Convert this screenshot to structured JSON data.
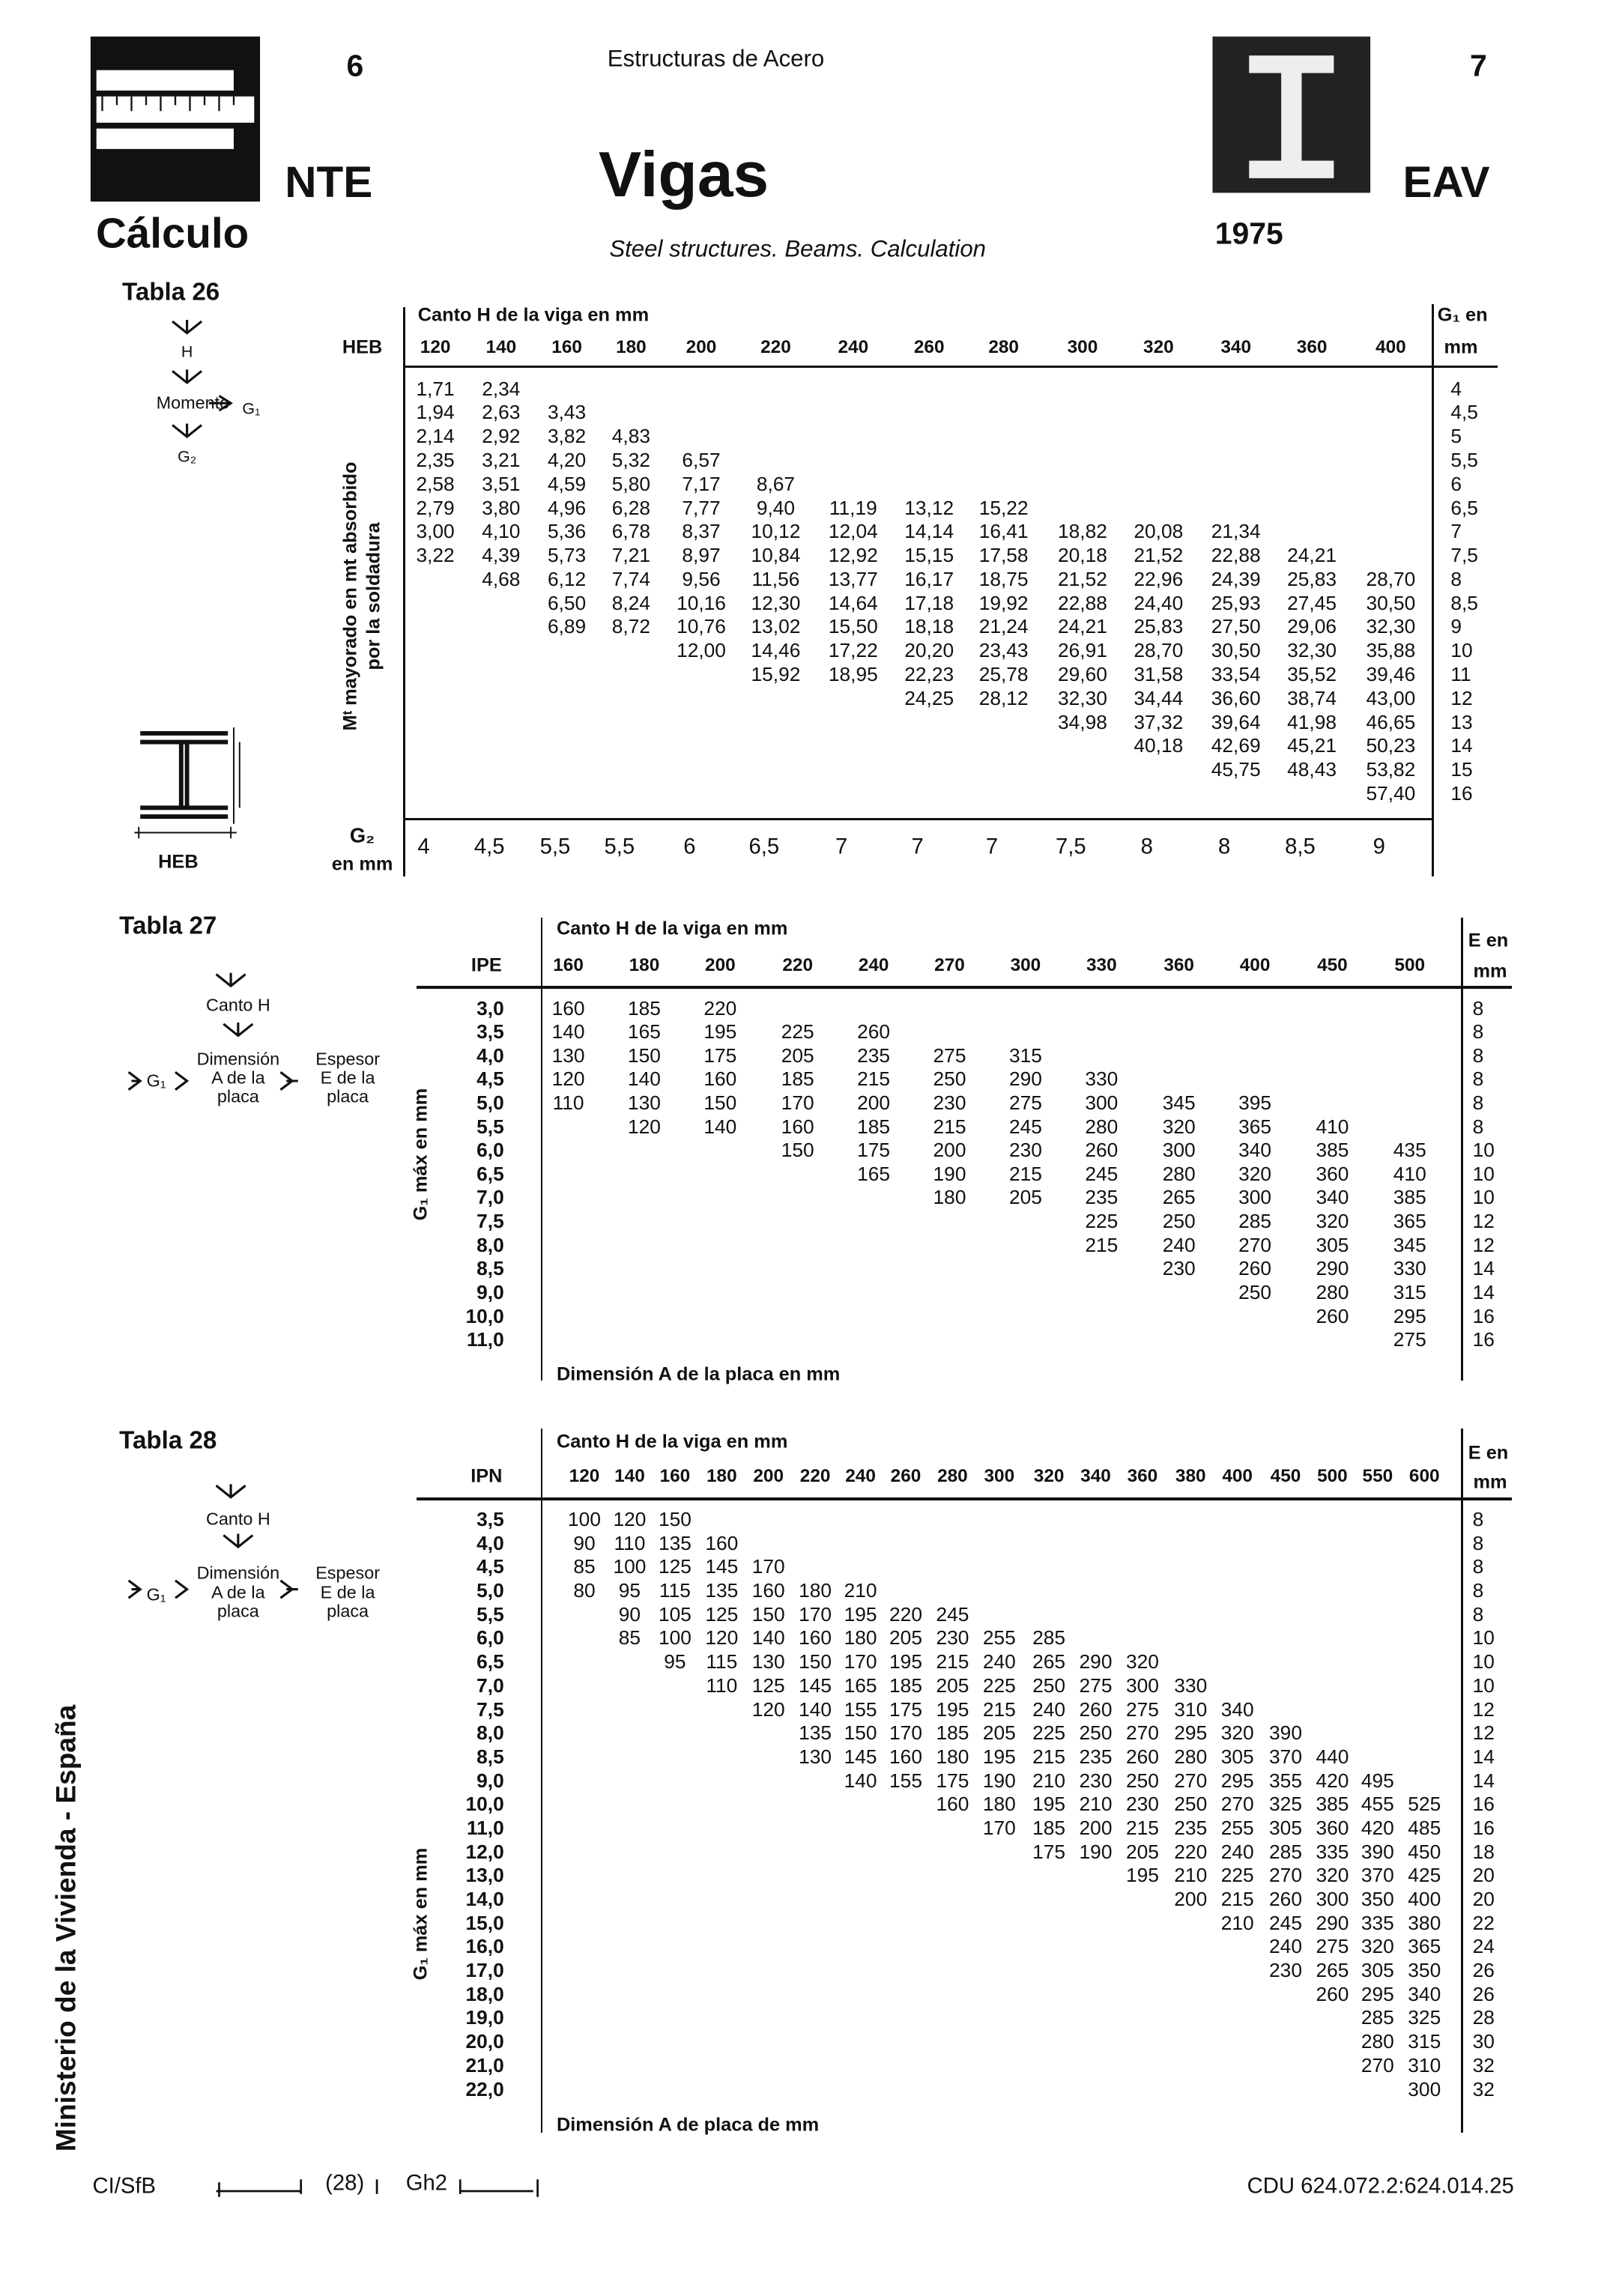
{
  "header": {
    "page_left": "6",
    "series": "Estructuras de Acero",
    "page_right": "7",
    "nte": "NTE",
    "title": "Vigas",
    "code": "EAV",
    "section": "Cálculo",
    "subtitle": "Steel structures. Beams. Calculation",
    "year": "1975"
  },
  "side_text": "Ministerio de la Vivienda - España",
  "tabla26": {
    "title": "Tabla 26",
    "flow": {
      "h": "H",
      "momento": "Momento",
      "g1": "G₁",
      "g2": "G₂"
    },
    "profile_label": "HEB",
    "column_label": "HEB",
    "column_header": "Canto H de la viga en mm",
    "g1_header": "G₁ en",
    "g1_unit": "mm",
    "row_header": [
      "Mᵗ mayorado en mt absorbido",
      "por la soldadura"
    ],
    "columns": [
      120,
      140,
      160,
      180,
      200,
      220,
      240,
      260,
      280,
      300,
      320,
      340,
      360,
      400
    ],
    "rows": [
      {
        "g1": "4",
        "values": [
          "1,71",
          "2,34"
        ]
      },
      {
        "g1": "4,5",
        "values": [
          "1,94",
          "2,63",
          "3,43"
        ]
      },
      {
        "g1": "5",
        "values": [
          "2,14",
          "2,92",
          "3,82",
          "4,83"
        ]
      },
      {
        "g1": "5,5",
        "values": [
          "2,35",
          "3,21",
          "4,20",
          "5,32",
          "6,57"
        ]
      },
      {
        "g1": "6",
        "values": [
          "2,58",
          "3,51",
          "4,59",
          "5,80",
          "7,17",
          "8,67"
        ]
      },
      {
        "g1": "6,5",
        "values": [
          "2,79",
          "3,80",
          "4,96",
          "6,28",
          "7,77",
          "9,40",
          "11,19",
          "13,12",
          "15,22"
        ]
      },
      {
        "g1": "7",
        "values": [
          "3,00",
          "4,10",
          "5,36",
          "6,78",
          "8,37",
          "10,12",
          "12,04",
          "14,14",
          "16,41",
          "18,82",
          "20,08",
          "21,34"
        ]
      },
      {
        "g1": "7,5",
        "values": [
          "3,22",
          "4,39",
          "5,73",
          "7,21",
          "8,97",
          "10,84",
          "12,92",
          "15,15",
          "17,58",
          "20,18",
          "21,52",
          "22,88",
          "24,21"
        ]
      },
      {
        "g1": "8",
        "values": [
          null,
          "4,68",
          "6,12",
          "7,74",
          "9,56",
          "11,56",
          "13,77",
          "16,17",
          "18,75",
          "21,52",
          "22,96",
          "24,39",
          "25,83",
          "28,70"
        ]
      },
      {
        "g1": "8,5",
        "values": [
          null,
          null,
          "6,50",
          "8,24",
          "10,16",
          "12,30",
          "14,64",
          "17,18",
          "19,92",
          "22,88",
          "24,40",
          "25,93",
          "27,45",
          "30,50"
        ]
      },
      {
        "g1": "9",
        "values": [
          null,
          null,
          "6,89",
          "8,72",
          "10,76",
          "13,02",
          "15,50",
          "18,18",
          "21,24",
          "24,21",
          "25,83",
          "27,50",
          "29,06",
          "32,30"
        ]
      },
      {
        "g1": "10",
        "values": [
          null,
          null,
          null,
          null,
          "12,00",
          "14,46",
          "17,22",
          "20,20",
          "23,43",
          "26,91",
          "28,70",
          "30,50",
          "32,30",
          "35,88"
        ]
      },
      {
        "g1": "11",
        "values": [
          null,
          null,
          null,
          null,
          null,
          "15,92",
          "18,95",
          "22,23",
          "25,78",
          "29,60",
          "31,58",
          "33,54",
          "35,52",
          "39,46"
        ]
      },
      {
        "g1": "12",
        "values": [
          null,
          null,
          null,
          null,
          null,
          null,
          null,
          "24,25",
          "28,12",
          "32,30",
          "34,44",
          "36,60",
          "38,74",
          "43,00"
        ]
      },
      {
        "g1": "13",
        "values": [
          null,
          null,
          null,
          null,
          null,
          null,
          null,
          null,
          null,
          "34,98",
          "37,32",
          "39,64",
          "41,98",
          "46,65"
        ]
      },
      {
        "g1": "14",
        "values": [
          null,
          null,
          null,
          null,
          null,
          null,
          null,
          null,
          null,
          null,
          "40,18",
          "42,69",
          "45,21",
          "50,23"
        ]
      },
      {
        "g1": "15",
        "values": [
          null,
          null,
          null,
          null,
          null,
          null,
          null,
          null,
          null,
          null,
          null,
          "45,75",
          "48,43",
          "53,82"
        ]
      },
      {
        "g1": "16",
        "values": [
          null,
          null,
          null,
          null,
          null,
          null,
          null,
          null,
          null,
          null,
          null,
          null,
          null,
          "57,40"
        ]
      }
    ],
    "g2_label": [
      "G₂",
      "en mm"
    ],
    "g2": [
      "4",
      "4,5",
      "5,5",
      "5,5",
      "6",
      "6,5",
      "7",
      "7",
      "7",
      "7,5",
      "8",
      "8",
      "8,5",
      "9"
    ]
  },
  "tabla27": {
    "title": "Tabla 27",
    "flow": {
      "canto": "Canto H",
      "g1": "G₁",
      "dimension": [
        "Dimensión",
        "A de la",
        "placa"
      ],
      "espesor": [
        "Espesor",
        "E de la",
        "placa"
      ]
    },
    "column_label": "IPE",
    "column_header": "Canto H de la viga en mm",
    "e_header": [
      "E en",
      "mm"
    ],
    "row_header": "G₁ máx en mm",
    "footer": "Dimensión A de la placa en mm",
    "columns": [
      160,
      180,
      200,
      220,
      240,
      270,
      300,
      330,
      360,
      400,
      450,
      500
    ],
    "rows": [
      {
        "g1": "3,0",
        "values": [
          160,
          185,
          220
        ],
        "e": 8
      },
      {
        "g1": "3,5",
        "values": [
          140,
          165,
          195,
          225,
          260
        ],
        "e": 8
      },
      {
        "g1": "4,0",
        "values": [
          130,
          150,
          175,
          205,
          235,
          275,
          315
        ],
        "e": 8
      },
      {
        "g1": "4,5",
        "values": [
          120,
          140,
          160,
          185,
          215,
          250,
          290,
          330
        ],
        "e": 8
      },
      {
        "g1": "5,0",
        "values": [
          110,
          130,
          150,
          170,
          200,
          230,
          275,
          300,
          345,
          395
        ],
        "e": 8
      },
      {
        "g1": "5,5",
        "values": [
          null,
          120,
          140,
          160,
          185,
          215,
          245,
          280,
          320,
          365,
          410
        ],
        "e": 8
      },
      {
        "g1": "6,0",
        "values": [
          null,
          null,
          null,
          150,
          175,
          200,
          230,
          260,
          300,
          340,
          385,
          435
        ],
        "e": 10
      },
      {
        "g1": "6,5",
        "values": [
          null,
          null,
          null,
          null,
          165,
          190,
          215,
          245,
          280,
          320,
          360,
          410
        ],
        "e": 10
      },
      {
        "g1": "7,0",
        "values": [
          null,
          null,
          null,
          null,
          null,
          180,
          205,
          235,
          265,
          300,
          340,
          385
        ],
        "e": 10
      },
      {
        "g1": "7,5",
        "values": [
          null,
          null,
          null,
          null,
          null,
          null,
          null,
          225,
          250,
          285,
          320,
          365
        ],
        "e": 12
      },
      {
        "g1": "8,0",
        "values": [
          null,
          null,
          null,
          null,
          null,
          null,
          null,
          215,
          240,
          270,
          305,
          345
        ],
        "e": 12
      },
      {
        "g1": "8,5",
        "values": [
          null,
          null,
          null,
          null,
          null,
          null,
          null,
          null,
          230,
          260,
          290,
          330
        ],
        "e": 14
      },
      {
        "g1": "9,0",
        "values": [
          null,
          null,
          null,
          null,
          null,
          null,
          null,
          null,
          null,
          250,
          280,
          315
        ],
        "e": 14
      },
      {
        "g1": "10,0",
        "values": [
          null,
          null,
          null,
          null,
          null,
          null,
          null,
          null,
          null,
          null,
          260,
          295
        ],
        "e": 16
      },
      {
        "g1": "11,0",
        "values": [
          null,
          null,
          null,
          null,
          null,
          null,
          null,
          null,
          null,
          null,
          null,
          275
        ],
        "e": 16
      }
    ]
  },
  "tabla28": {
    "title": "Tabla 28",
    "flow": {
      "canto": "Canto H",
      "g1": "G₁",
      "dimension": [
        "Dimensión",
        "A de la",
        "placa"
      ],
      "espesor": [
        "Espesor",
        "E de la",
        "placa"
      ]
    },
    "column_label": "IPN",
    "column_header": "Canto H de la viga en mm",
    "e_header": [
      "E en",
      "mm"
    ],
    "row_header": "G₁ máx en mm",
    "footer": "Dimensión A de placa de mm",
    "columns": [
      120,
      140,
      160,
      180,
      200,
      220,
      240,
      260,
      280,
      300,
      320,
      340,
      360,
      380,
      400,
      450,
      500,
      550,
      600
    ],
    "rows": [
      {
        "g1": "3,5",
        "values": [
          100,
          120,
          150
        ],
        "e": 8
      },
      {
        "g1": "4,0",
        "values": [
          90,
          110,
          135,
          160
        ],
        "e": 8
      },
      {
        "g1": "4,5",
        "values": [
          85,
          100,
          125,
          145,
          170
        ],
        "e": 8
      },
      {
        "g1": "5,0",
        "values": [
          80,
          95,
          115,
          135,
          160,
          180,
          210
        ],
        "e": 8
      },
      {
        "g1": "5,5",
        "values": [
          null,
          90,
          105,
          125,
          150,
          170,
          195,
          220,
          245
        ],
        "e": 8
      },
      {
        "g1": "6,0",
        "values": [
          null,
          85,
          100,
          120,
          140,
          160,
          180,
          205,
          230,
          255,
          285
        ],
        "e": 10
      },
      {
        "g1": "6,5",
        "values": [
          null,
          null,
          95,
          115,
          130,
          150,
          170,
          195,
          215,
          240,
          265,
          290,
          320
        ],
        "e": 10
      },
      {
        "g1": "7,0",
        "values": [
          null,
          null,
          null,
          110,
          125,
          145,
          165,
          185,
          205,
          225,
          250,
          275,
          300,
          330
        ],
        "e": 10
      },
      {
        "g1": "7,5",
        "values": [
          null,
          null,
          null,
          null,
          120,
          140,
          155,
          175,
          195,
          215,
          240,
          260,
          275,
          310,
          340
        ],
        "e": 12
      },
      {
        "g1": "8,0",
        "values": [
          null,
          null,
          null,
          null,
          null,
          135,
          150,
          170,
          185,
          205,
          225,
          250,
          270,
          295,
          320,
          390
        ],
        "e": 12
      },
      {
        "g1": "8,5",
        "values": [
          null,
          null,
          null,
          null,
          null,
          130,
          145,
          160,
          180,
          195,
          215,
          235,
          260,
          280,
          305,
          370,
          440
        ],
        "e": 14
      },
      {
        "g1": "9,0",
        "values": [
          null,
          null,
          null,
          null,
          null,
          null,
          140,
          155,
          175,
          190,
          210,
          230,
          250,
          270,
          295,
          355,
          420,
          495
        ],
        "e": 14
      },
      {
        "g1": "10,0",
        "values": [
          null,
          null,
          null,
          null,
          null,
          null,
          null,
          null,
          160,
          180,
          195,
          210,
          230,
          250,
          270,
          325,
          385,
          455,
          525
        ],
        "e": 16
      },
      {
        "g1": "11,0",
        "values": [
          null,
          null,
          null,
          null,
          null,
          null,
          null,
          null,
          null,
          170,
          185,
          200,
          215,
          235,
          255,
          305,
          360,
          420,
          485
        ],
        "e": 16
      },
      {
        "g1": "12,0",
        "values": [
          null,
          null,
          null,
          null,
          null,
          null,
          null,
          null,
          null,
          null,
          175,
          190,
          205,
          220,
          240,
          285,
          335,
          390,
          450
        ],
        "e": 18
      },
      {
        "g1": "13,0",
        "values": [
          null,
          null,
          null,
          null,
          null,
          null,
          null,
          null,
          null,
          null,
          null,
          null,
          195,
          210,
          225,
          270,
          320,
          370,
          425
        ],
        "e": 20
      },
      {
        "g1": "14,0",
        "values": [
          null,
          null,
          null,
          null,
          null,
          null,
          null,
          null,
          null,
          null,
          null,
          null,
          null,
          200,
          215,
          260,
          300,
          350,
          400
        ],
        "e": 20
      },
      {
        "g1": "15,0",
        "values": [
          null,
          null,
          null,
          null,
          null,
          null,
          null,
          null,
          null,
          null,
          null,
          null,
          null,
          null,
          210,
          245,
          290,
          335,
          380
        ],
        "e": 22
      },
      {
        "g1": "16,0",
        "values": [
          null,
          null,
          null,
          null,
          null,
          null,
          null,
          null,
          null,
          null,
          null,
          null,
          null,
          null,
          null,
          240,
          275,
          320,
          365
        ],
        "e": 24
      },
      {
        "g1": "17,0",
        "values": [
          null,
          null,
          null,
          null,
          null,
          null,
          null,
          null,
          null,
          null,
          null,
          null,
          null,
          null,
          null,
          230,
          265,
          305,
          350
        ],
        "e": 26
      },
      {
        "g1": "18,0",
        "values": [
          null,
          null,
          null,
          null,
          null,
          null,
          null,
          null,
          null,
          null,
          null,
          null,
          null,
          null,
          null,
          null,
          260,
          295,
          340
        ],
        "e": 26
      },
      {
        "g1": "19,0",
        "values": [
          null,
          null,
          null,
          null,
          null,
          null,
          null,
          null,
          null,
          null,
          null,
          null,
          null,
          null,
          null,
          null,
          null,
          285,
          325
        ],
        "e": 28
      },
      {
        "g1": "20,0",
        "values": [
          null,
          null,
          null,
          null,
          null,
          null,
          null,
          null,
          null,
          null,
          null,
          null,
          null,
          null,
          null,
          null,
          null,
          280,
          315
        ],
        "e": 30
      },
      {
        "g1": "21,0",
        "values": [
          null,
          null,
          null,
          null,
          null,
          null,
          null,
          null,
          null,
          null,
          null,
          null,
          null,
          null,
          null,
          null,
          null,
          270,
          310
        ],
        "e": 32
      },
      {
        "g1": "22,0",
        "values": [
          null,
          null,
          null,
          null,
          null,
          null,
          null,
          null,
          null,
          null,
          null,
          null,
          null,
          null,
          null,
          null,
          null,
          null,
          300
        ],
        "e": 32
      }
    ]
  },
  "footer": {
    "cisfb": "CI/SfB",
    "code1": "(28)",
    "code2": "Gh2",
    "cdu": "CDU 624.072.2:624.014.25"
  }
}
